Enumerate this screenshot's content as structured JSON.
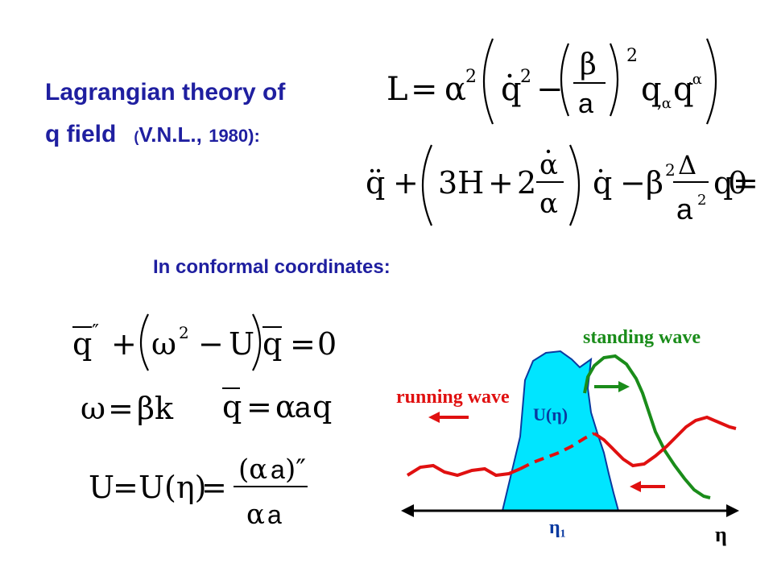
{
  "heading": {
    "line1": "Lagrangian theory of",
    "line2_main": "q field",
    "cite_open": "(",
    "cite_name": "V.N.L.,",
    "cite_year": "1980):"
  },
  "subheading": "In conformal coordinates:",
  "equations": {
    "lagrangian": "L = α²( q̇² − (β/a)² q,α q,α )",
    "field_equation": "q̈ + (3H + 2 α̇/α) q̇ − β² Δ/a² q = 0",
    "conformal_equation": "q̄″ + (ω² − U) q̄ = 0",
    "omega_def": "ω = βk",
    "qbar_def": "q̄ = αaq",
    "potential_def": "U = U(η) = (αa)″ / αa"
  },
  "diagram": {
    "standing_wave_label": "standing wave",
    "running_wave_label": "running wave",
    "potential_label": "U(η)",
    "eta1_label": "η₁",
    "eta_axis_label": "η",
    "colors": {
      "standing": "#1a8c1a",
      "running": "#e01010",
      "potential_fill": "#00e5ff",
      "potential_stroke": "#0a3aa0",
      "axis": "#000000"
    }
  }
}
